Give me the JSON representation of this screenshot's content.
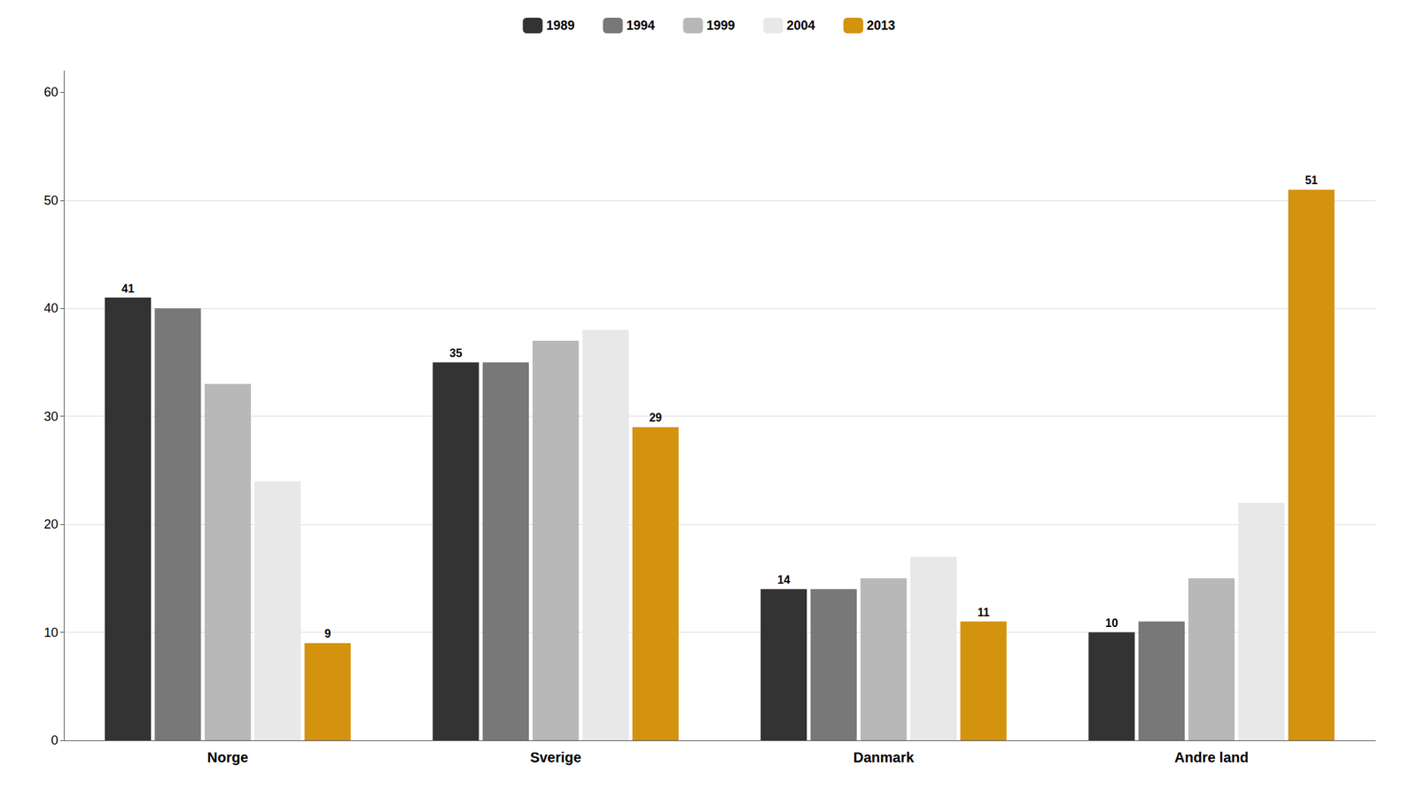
{
  "chart_data": {
    "type": "bar",
    "categories": [
      "Norge",
      "Sverige",
      "Danmark",
      "Andre land"
    ],
    "series": [
      {
        "name": "1989",
        "color": "#333333",
        "values": [
          41,
          35,
          14,
          10
        ],
        "data_labels": true
      },
      {
        "name": "1994",
        "color": "#787878",
        "values": [
          40,
          35,
          14,
          11
        ],
        "data_labels": false
      },
      {
        "name": "1999",
        "color": "#b8b8b8",
        "values": [
          33,
          37,
          15,
          15
        ],
        "data_labels": false
      },
      {
        "name": "2004",
        "color": "#e8e8e8",
        "values": [
          24,
          38,
          17,
          22
        ],
        "data_labels": false
      },
      {
        "name": "2013",
        "color": "#d4930e",
        "values": [
          9,
          29,
          11,
          51
        ],
        "data_labels": true
      }
    ],
    "ylim": [
      0,
      62
    ],
    "yticks": [
      0,
      10,
      20,
      30,
      40,
      50,
      60
    ],
    "grid": true,
    "legend": "top"
  }
}
